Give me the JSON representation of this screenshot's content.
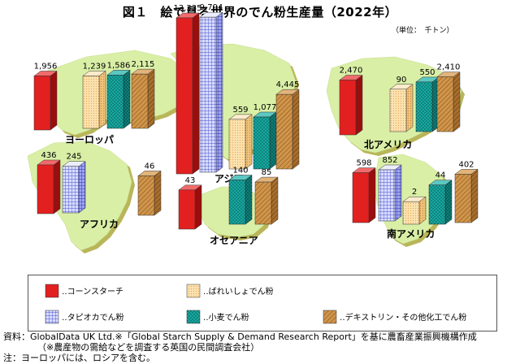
{
  "title": "図１　絵で見る世界のでん粉生産量（2022年）",
  "unit_label": "（単位：　千トン）",
  "legend": [
    {
      "key": "corn",
      "label": "‥コーンスターチ",
      "color": "#e02020"
    },
    {
      "key": "potato",
      "label": "‥ばれいしょでん粉",
      "color": "#f6cc88"
    },
    {
      "key": "tapioca",
      "label": "‥タピオカでん粉",
      "color": "#8a8ee8"
    },
    {
      "key": "wheat",
      "label": "‥小麦でん粉",
      "color": "#17a8a0"
    },
    {
      "key": "other",
      "label": "‥デキストリン・その他化工でん粉",
      "color": "#c8893c"
    }
  ],
  "source_notes": [
    "資料：GlobalData UK Ltd.※「Global Starch Supply & Demand Research Report」を基に農畜産業振興機構作成",
    "（※農産物の需給などを調査する英国の民間調査会社）",
    "注：ヨーロッパには、ロシアを含む。"
  ],
  "chart_data": {
    "type": "bar",
    "title": "図１　絵で見る世界のでん粉生産量（2022年）",
    "unit": "千トン",
    "series_order": [
      "corn",
      "potato",
      "tapioca",
      "wheat",
      "other"
    ],
    "regions": [
      {
        "name": "ヨーロッパ",
        "values": {
          "corn": 1956,
          "potato": 1239,
          "wheat": 1586,
          "other": 2115
        },
        "labels": {
          "corn": "1,956",
          "potato": "1,239",
          "wheat": "1,586",
          "other": "2,115"
        }
      },
      {
        "name": "アジア",
        "values": {
          "corn": 13335,
          "tapioca": 9794,
          "potato": 559,
          "wheat": 1077,
          "other": 4445
        },
        "labels": {
          "corn": "13,335",
          "tapioca": "9,794",
          "potato": "559",
          "wheat": "1,077",
          "other": "4,445"
        }
      },
      {
        "name": "北アメリカ",
        "values": {
          "corn": 2470,
          "potato": 90,
          "wheat": 550,
          "other": 2410
        },
        "labels": {
          "corn": "2,470",
          "potato": "90",
          "wheat": "550",
          "other": "2,410"
        }
      },
      {
        "name": "アフリカ",
        "values": {
          "corn": 436,
          "tapioca": 245,
          "other": 46
        },
        "labels": {
          "corn": "436",
          "tapioca": "245",
          "other": "46"
        }
      },
      {
        "name": "オセアニア",
        "values": {
          "corn": 43,
          "wheat": 140,
          "other": 85
        },
        "labels": {
          "corn": "43",
          "wheat": "140",
          "other": "85"
        }
      },
      {
        "name": "南アメリカ",
        "values": {
          "corn": 598,
          "tapioca": 852,
          "potato": 2,
          "wheat": 44,
          "other": 402
        },
        "labels": {
          "corn": "598",
          "tapioca": "852",
          "potato": "2",
          "wheat": "44",
          "other": "402"
        }
      }
    ]
  }
}
